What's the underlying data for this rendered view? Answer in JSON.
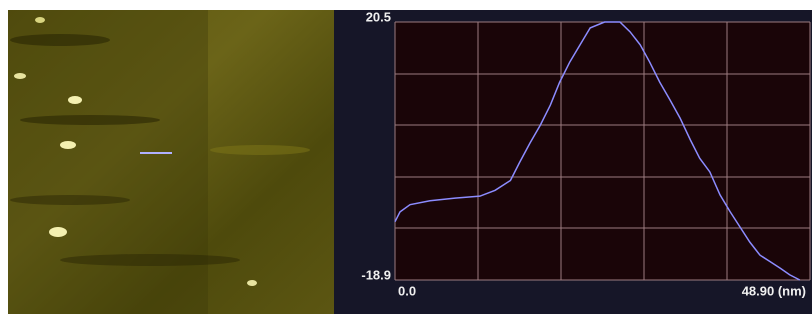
{
  "chart_data": {
    "type": "line",
    "x": [
      0,
      0.59,
      1.77,
      4.12,
      7.07,
      10.0,
      11.8,
      13.6,
      14.7,
      15.9,
      17.1,
      18.3,
      19.4,
      20.6,
      21.8,
      23.0,
      24.7,
      26.5,
      27.7,
      28.9,
      30.0,
      31.2,
      32.4,
      33.6,
      34.8,
      35.9,
      37.1,
      38.3,
      39.5,
      40.7,
      41.8,
      43.0,
      44.2,
      45.4,
      46.5,
      47.7
    ],
    "values": [
      -10.0,
      -8.5,
      -7.4,
      -6.8,
      -6.4,
      -6.1,
      -5.2,
      -3.7,
      -0.9,
      2.0,
      4.7,
      7.8,
      11.3,
      14.4,
      17.0,
      19.6,
      20.5,
      20.5,
      19.0,
      17.0,
      14.4,
      11.3,
      8.6,
      5.8,
      2.5,
      -0.3,
      -2.4,
      -5.9,
      -8.5,
      -10.9,
      -13.1,
      -15.1,
      -16.1,
      -17.1,
      -18.1,
      -18.9
    ],
    "color": "#8c8cff",
    "xlim": [
      0,
      48.9
    ],
    "xticks": [
      {
        "value": 0,
        "label": "0.0"
      },
      {
        "value": 48.9,
        "label": "48.90 (nm)"
      }
    ],
    "ylim": [
      -18.9,
      20.5
    ],
    "yticks": [
      -18.9,
      20.5
    ]
  }
}
